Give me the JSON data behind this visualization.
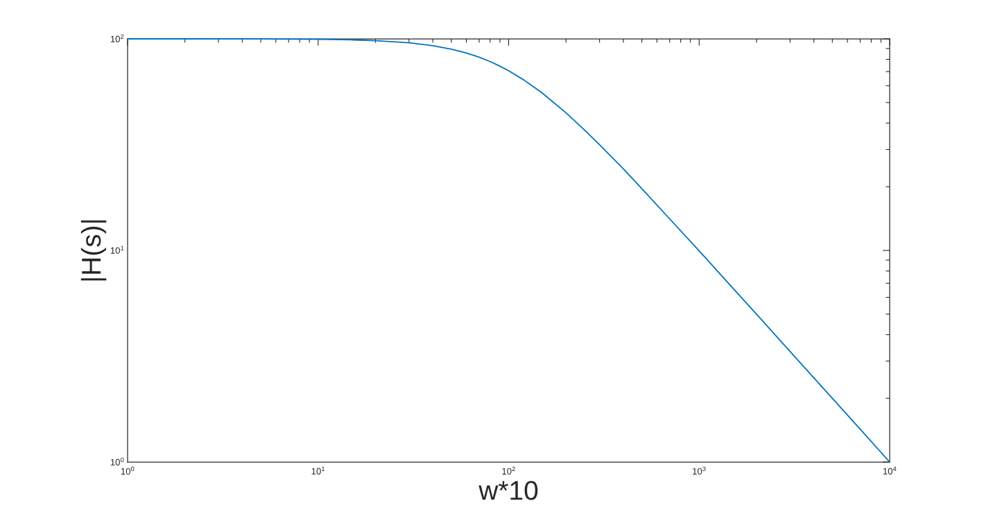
{
  "chart_data": {
    "type": "line",
    "xlabel": "w*10",
    "ylabel": "|H(s)|",
    "log": "xy",
    "x": [
      1,
      2,
      5,
      10,
      15,
      20,
      30,
      40,
      50,
      60,
      70,
      80,
      90,
      100,
      120,
      150,
      200,
      250,
      300,
      400,
      500,
      700,
      1000,
      1500,
      2000,
      3000,
      5000,
      7000,
      10000
    ],
    "series": [
      {
        "color": "#0072bd",
        "values": [
          100,
          100,
          99.9,
          99.5,
          98.9,
          98.1,
          95.8,
          92.8,
          89.4,
          85.7,
          81.9,
          78.1,
          74.3,
          70.7,
          64.0,
          55.5,
          44.7,
          37.1,
          31.6,
          24.3,
          19.6,
          14.1,
          9.95,
          6.65,
          5.0,
          3.33,
          2.0,
          1.43,
          1.0
        ]
      }
    ],
    "xlim": [
      1,
      10000
    ],
    "ylim": [
      1,
      100
    ],
    "xticks": [
      {
        "value": 1,
        "label": "10$^{0}$"
      },
      {
        "value": 2,
        "label": null
      },
      {
        "value": 3,
        "label": null
      },
      {
        "value": 4,
        "label": null
      },
      {
        "value": 5,
        "label": null
      },
      {
        "value": 6,
        "label": null
      },
      {
        "value": 7,
        "label": null
      },
      {
        "value": 8,
        "label": null
      },
      {
        "value": 9,
        "label": null
      },
      {
        "value": 10,
        "label": "10$^{1}$"
      },
      {
        "value": 20,
        "label": null
      },
      {
        "value": 30,
        "label": null
      },
      {
        "value": 40,
        "label": null
      },
      {
        "value": 50,
        "label": null
      },
      {
        "value": 60,
        "label": null
      },
      {
        "value": 70,
        "label": null
      },
      {
        "value": 80,
        "label": null
      },
      {
        "value": 90,
        "label": null
      },
      {
        "value": 100,
        "label": "10$^{2}$"
      },
      {
        "value": 200,
        "label": null
      },
      {
        "value": 300,
        "label": null
      },
      {
        "value": 400,
        "label": null
      },
      {
        "value": 500,
        "label": null
      },
      {
        "value": 600,
        "label": null
      },
      {
        "value": 700,
        "label": null
      },
      {
        "value": 800,
        "label": null
      },
      {
        "value": 900,
        "label": null
      },
      {
        "value": 1000,
        "label": "10$^{3}$"
      },
      {
        "value": 2000,
        "label": null
      },
      {
        "value": 3000,
        "label": null
      },
      {
        "value": 4000,
        "label": null
      },
      {
        "value": 5000,
        "label": null
      },
      {
        "value": 6000,
        "label": null
      },
      {
        "value": 7000,
        "label": null
      },
      {
        "value": 8000,
        "label": null
      },
      {
        "value": 9000,
        "label": null
      },
      {
        "value": 10000,
        "label": "10$^{4}$"
      }
    ],
    "yticks": [
      {
        "value": 1,
        "label": "10$^{0}$"
      },
      {
        "value": 2,
        "label": null
      },
      {
        "value": 3,
        "label": null
      },
      {
        "value": 4,
        "label": null
      },
      {
        "value": 5,
        "label": null
      },
      {
        "value": 6,
        "label": null
      },
      {
        "value": 7,
        "label": null
      },
      {
        "value": 8,
        "label": null
      },
      {
        "value": 9,
        "label": null
      },
      {
        "value": 10,
        "label": "10$^{1}$"
      },
      {
        "value": 20,
        "label": null
      },
      {
        "value": 30,
        "label": null
      },
      {
        "value": 40,
        "label": null
      },
      {
        "value": 50,
        "label": null
      },
      {
        "value": 60,
        "label": null
      },
      {
        "value": 70,
        "label": null
      },
      {
        "value": 80,
        "label": null
      },
      {
        "value": 90,
        "label": null
      },
      {
        "value": 100,
        "label": "10$^{2}$"
      }
    ],
    "grid": false,
    "line_style": "solid"
  }
}
